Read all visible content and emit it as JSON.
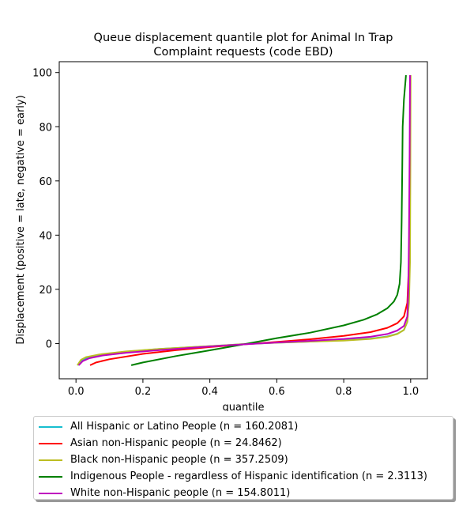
{
  "chart_data": {
    "type": "line",
    "title": "Queue displacement quantile plot for Animal In Trap\nComplaint  requests (code EBD)",
    "xlabel": "quantile",
    "ylabel": "Displacement (positive = late, negative = early)",
    "xlim": [
      -0.05,
      1.05
    ],
    "ylim": [
      -13,
      104
    ],
    "x_ticks": [
      0.0,
      0.2,
      0.4,
      0.6,
      0.8,
      1.0
    ],
    "x_tick_labels": [
      "0.0",
      "0.2",
      "0.4",
      "0.6",
      "0.8",
      "1.0"
    ],
    "y_ticks": [
      0,
      20,
      40,
      60,
      80,
      100
    ],
    "y_tick_labels": [
      "0",
      "20",
      "40",
      "60",
      "80",
      "100"
    ],
    "grid": false,
    "legend_position": "below",
    "series": [
      {
        "name": "All Hispanic or Latino People (n = 160.2081)",
        "color": "#17becf",
        "points": [
          [
            0.006,
            -8
          ],
          [
            0.02,
            -6
          ],
          [
            0.04,
            -5
          ],
          [
            0.08,
            -4
          ],
          [
            0.15,
            -3
          ],
          [
            0.25,
            -2
          ],
          [
            0.35,
            -1.3
          ],
          [
            0.45,
            -0.6
          ],
          [
            0.5,
            -0.2
          ],
          [
            0.6,
            0.3
          ],
          [
            0.7,
            0.7
          ],
          [
            0.8,
            1.2
          ],
          [
            0.88,
            1.8
          ],
          [
            0.93,
            2.6
          ],
          [
            0.96,
            3.6
          ],
          [
            0.98,
            5
          ],
          [
            0.99,
            8
          ],
          [
            0.993,
            15
          ],
          [
            0.996,
            30
          ],
          [
            0.998,
            60
          ],
          [
            0.999,
            99
          ]
        ]
      },
      {
        "name": "Asian non-Hispanic people (n = 24.8462)",
        "color": "#ff0000",
        "points": [
          [
            0.042,
            -8
          ],
          [
            0.06,
            -7
          ],
          [
            0.1,
            -5.8
          ],
          [
            0.2,
            -3.8
          ],
          [
            0.3,
            -2.4
          ],
          [
            0.4,
            -1.3
          ],
          [
            0.5,
            -0.3
          ],
          [
            0.6,
            0.6
          ],
          [
            0.7,
            1.6
          ],
          [
            0.8,
            2.8
          ],
          [
            0.88,
            4.2
          ],
          [
            0.93,
            5.8
          ],
          [
            0.96,
            7.5
          ],
          [
            0.98,
            10
          ],
          [
            0.99,
            15
          ],
          [
            0.995,
            30
          ],
          [
            0.998,
            60
          ],
          [
            0.999,
            99
          ]
        ]
      },
      {
        "name": "Black non-Hispanic people (n = 357.2509)",
        "color": "#bcbd22",
        "points": [
          [
            0.004,
            -8
          ],
          [
            0.015,
            -6
          ],
          [
            0.03,
            -5
          ],
          [
            0.07,
            -4
          ],
          [
            0.15,
            -2.9
          ],
          [
            0.25,
            -2
          ],
          [
            0.35,
            -1.3
          ],
          [
            0.45,
            -0.6
          ],
          [
            0.5,
            -0.2
          ],
          [
            0.6,
            0.3
          ],
          [
            0.7,
            0.7
          ],
          [
            0.8,
            1.1
          ],
          [
            0.88,
            1.7
          ],
          [
            0.93,
            2.5
          ],
          [
            0.96,
            3.5
          ],
          [
            0.98,
            5
          ],
          [
            0.99,
            8
          ],
          [
            0.995,
            15
          ],
          [
            0.998,
            30
          ],
          [
            0.999,
            60
          ],
          [
            1.0,
            99
          ]
        ]
      },
      {
        "name": "Indigenous People - regardless of Hispanic identification (n = 2.3113)",
        "color": "#008000",
        "points": [
          [
            0.165,
            -8
          ],
          [
            0.2,
            -7
          ],
          [
            0.3,
            -4.6
          ],
          [
            0.4,
            -2.5
          ],
          [
            0.5,
            -0.3
          ],
          [
            0.6,
            2
          ],
          [
            0.7,
            4
          ],
          [
            0.8,
            6.7
          ],
          [
            0.86,
            8.8
          ],
          [
            0.9,
            10.8
          ],
          [
            0.93,
            13
          ],
          [
            0.95,
            15.5
          ],
          [
            0.96,
            18
          ],
          [
            0.967,
            22
          ],
          [
            0.971,
            30
          ],
          [
            0.973,
            45
          ],
          [
            0.975,
            65
          ],
          [
            0.976,
            80
          ],
          [
            0.98,
            90
          ],
          [
            0.986,
            99
          ]
        ]
      },
      {
        "name": "White non-Hispanic people (n = 154.8011)",
        "color": "#bf00bf",
        "points": [
          [
            0.008,
            -8
          ],
          [
            0.02,
            -6.5
          ],
          [
            0.04,
            -5.4
          ],
          [
            0.08,
            -4.4
          ],
          [
            0.15,
            -3.4
          ],
          [
            0.25,
            -2.4
          ],
          [
            0.35,
            -1.5
          ],
          [
            0.45,
            -0.7
          ],
          [
            0.5,
            -0.3
          ],
          [
            0.6,
            0.4
          ],
          [
            0.7,
            1
          ],
          [
            0.8,
            1.7
          ],
          [
            0.88,
            2.5
          ],
          [
            0.93,
            3.5
          ],
          [
            0.96,
            4.8
          ],
          [
            0.98,
            6.5
          ],
          [
            0.99,
            10
          ],
          [
            0.993,
            20
          ],
          [
            0.995,
            40
          ],
          [
            0.997,
            70
          ],
          [
            0.998,
            99
          ]
        ]
      }
    ]
  }
}
